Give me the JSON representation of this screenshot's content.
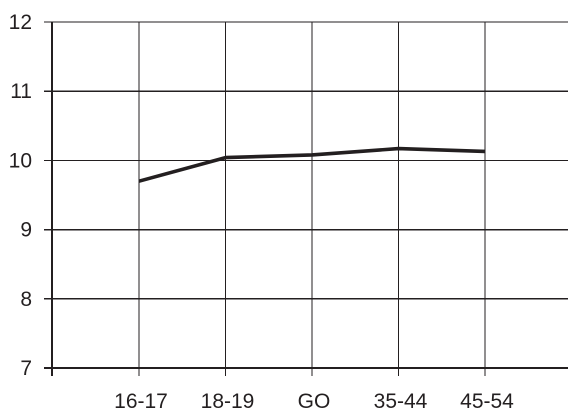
{
  "chart_data": {
    "type": "line",
    "title": "",
    "xlabel": "",
    "ylabel": "",
    "categories": [
      "16-17",
      "18-19",
      "GO",
      "35-44",
      "45-54"
    ],
    "ylim": [
      7,
      12
    ],
    "yticks": [
      7,
      8,
      9,
      10,
      11,
      12
    ],
    "grid": true,
    "legend": "none",
    "series": [
      {
        "values": [
          9.7,
          10.04,
          10.08,
          10.17,
          10.13
        ],
        "color": "#231f20"
      }
    ]
  }
}
